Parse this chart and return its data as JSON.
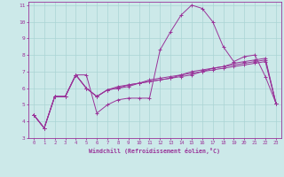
{
  "xlabel": "Windchill (Refroidissement éolien,°C)",
  "bg_color": "#cce9e9",
  "grid_color": "#aad4d4",
  "line_color": "#993399",
  "xlim": [
    -0.5,
    23.5
  ],
  "ylim": [
    3,
    11.2
  ],
  "yticks": [
    3,
    4,
    5,
    6,
    7,
    8,
    9,
    10,
    11
  ],
  "xticks": [
    0,
    1,
    2,
    3,
    4,
    5,
    6,
    7,
    8,
    9,
    10,
    11,
    12,
    13,
    14,
    15,
    16,
    17,
    18,
    19,
    20,
    21,
    22,
    23
  ],
  "series": [
    [
      4.4,
      3.6,
      5.5,
      5.5,
      6.8,
      6.8,
      4.5,
      5.0,
      5.3,
      5.4,
      5.4,
      5.4,
      8.3,
      9.4,
      10.4,
      11.0,
      10.8,
      10.0,
      8.5,
      7.6,
      7.9,
      8.0,
      6.7,
      5.1
    ],
    [
      4.4,
      3.6,
      5.5,
      5.5,
      6.8,
      6.0,
      5.5,
      5.9,
      6.0,
      6.1,
      6.3,
      6.4,
      6.5,
      6.6,
      6.7,
      6.8,
      7.0,
      7.1,
      7.2,
      7.3,
      7.4,
      7.5,
      7.6,
      5.1
    ],
    [
      4.4,
      3.6,
      5.5,
      5.5,
      6.8,
      6.0,
      5.5,
      5.9,
      6.0,
      6.2,
      6.3,
      6.4,
      6.5,
      6.6,
      6.8,
      6.9,
      7.0,
      7.2,
      7.3,
      7.4,
      7.5,
      7.6,
      7.7,
      5.1
    ],
    [
      4.4,
      3.6,
      5.5,
      5.5,
      6.8,
      6.0,
      5.5,
      5.9,
      6.1,
      6.2,
      6.3,
      6.5,
      6.6,
      6.7,
      6.8,
      7.0,
      7.1,
      7.2,
      7.3,
      7.5,
      7.6,
      7.7,
      7.8,
      5.1
    ]
  ]
}
